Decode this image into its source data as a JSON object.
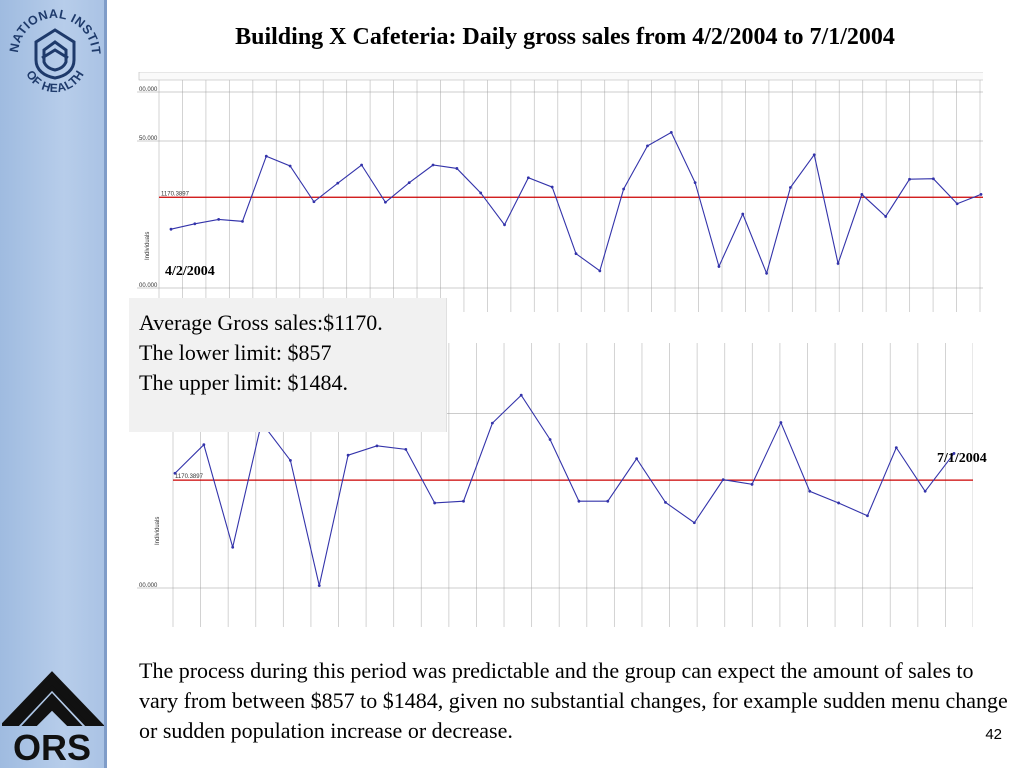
{
  "title": "Building X Cafeteria: Daily gross sales from 4/2/2004 to 7/1/2004",
  "logos": {
    "top": "NATIONAL INSTITUTES OF HEALTH",
    "bottom": "ORS"
  },
  "info_box": {
    "line1": "Average Gross sales:$1170.",
    "line2": "The lower limit: $857",
    "line3": "The upper limit: $1484."
  },
  "dates": {
    "start": "4/2/2004",
    "end": "7/1/2004"
  },
  "bottom_text": "The process during this period was predictable and the group can expect the amount of sales to vary from between $857 to $1484, given no substantial changes, for example sudden menu change or sudden population increase or decrease.",
  "page_number": "42",
  "colors": {
    "series": "#3333aa",
    "mean_line": "#cc0000",
    "grid": "#c8c8c8",
    "sidebar": "#a9c2e4"
  },
  "chart_data": [
    {
      "type": "line",
      "ylabel": "Individuals",
      "ylim": [
        800,
        1600
      ],
      "yticks": [
        "00.000",
        "50.000",
        "00.000"
      ],
      "mean_label": "1170.3897",
      "mean": 1170.39,
      "values": [
        1040,
        1062,
        1080,
        1072,
        1338,
        1298,
        1152,
        1228,
        1302,
        1150,
        1230,
        1302,
        1288,
        1188,
        1058,
        1250,
        1212,
        940,
        870,
        1204,
        1380,
        1435,
        1230,
        888,
        1102,
        860,
        1210,
        1344,
        900,
        1182,
        1092,
        1244,
        1246,
        1144,
        1182
      ]
    },
    {
      "type": "line",
      "ylabel": "Individuals",
      "ylim": [
        800,
        1600
      ],
      "yticks": [
        "50.000",
        "00.000"
      ],
      "mean_label": "1170.3897",
      "mean": 1170.39,
      "values": [
        1194,
        1292,
        940,
        1368,
        1238,
        808,
        1256,
        1288,
        1276,
        1092,
        1098,
        1366,
        1462,
        1310,
        1098,
        1098,
        1244,
        1094,
        1024,
        1172,
        1156,
        1368,
        1132,
        1092,
        1048,
        1282,
        1132,
        1262
      ]
    }
  ]
}
